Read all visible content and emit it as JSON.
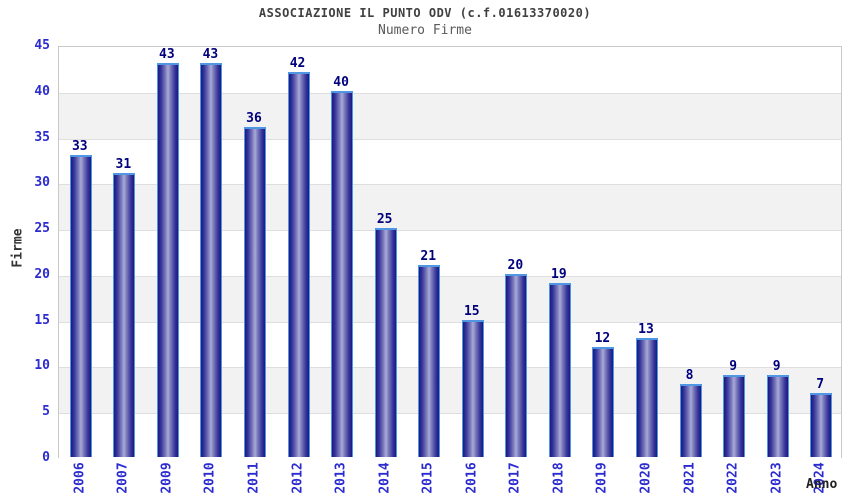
{
  "chart_data": {
    "type": "bar",
    "title": "ASSOCIAZIONE IL PUNTO ODV (c.f.01613370020)",
    "subtitle": "Numero Firme",
    "xlabel": "Anno",
    "ylabel": "Firme",
    "categories": [
      "2006",
      "2007",
      "2009",
      "2010",
      "2011",
      "2012",
      "2013",
      "2014",
      "2015",
      "2016",
      "2017",
      "2018",
      "2019",
      "2020",
      "2021",
      "2022",
      "2023",
      "2024"
    ],
    "values": [
      33,
      31,
      43,
      43,
      36,
      42,
      40,
      25,
      21,
      15,
      20,
      19,
      12,
      13,
      8,
      9,
      9,
      7
    ],
    "ylim": [
      0,
      45
    ],
    "ytick_step": 5,
    "legend": "none",
    "grid": "horizontal-bands-alternating",
    "colors": {
      "bar_edge": "#1b1b7e",
      "bar_center": "#a9a9d9",
      "bar_outline": "#4f97e3",
      "band_gray": "#f2f2f2",
      "band_white": "#ffffff",
      "gridline": "#dedede",
      "plot_border": "#c9c9c9",
      "axis_tick_text": "#2b2bd0",
      "value_label_text": "#00007d",
      "title_text": "#404040",
      "subtitle_text": "#5a5a5a"
    }
  }
}
